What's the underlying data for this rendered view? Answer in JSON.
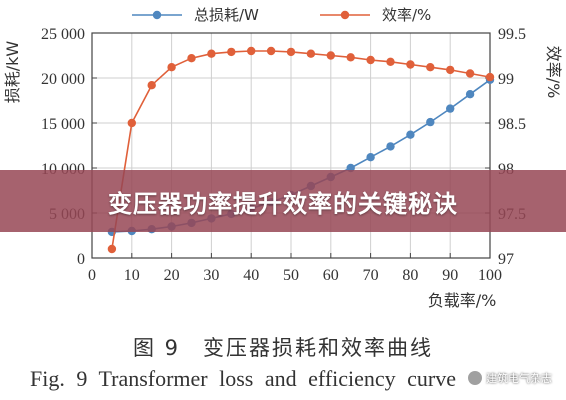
{
  "banner": {
    "title": "变压器功率提升效率的关键秘诀"
  },
  "caption": {
    "cn": "图 9　变压器损耗和效率曲线",
    "en": "Fig. 9   Transformer loss and efficiency curve"
  },
  "watermark": {
    "text": "建筑电气杂志",
    "icon": "wechat-icon"
  },
  "colors": {
    "loss": "#4f87bf",
    "efficiency": "#e0603a",
    "axis": "#444444",
    "grid": "#cfcfcf"
  },
  "chart_data": {
    "type": "line",
    "xlabel": "负载率/%",
    "ylabel_left": "损耗/kW",
    "ylabel_right": "效率/%",
    "x_ticks": [
      0,
      10,
      20,
      30,
      40,
      50,
      60,
      70,
      80,
      90,
      100
    ],
    "y_left_ticks": [
      "0",
      "5 000",
      "10 000",
      "15 000",
      "20 000",
      "25 000"
    ],
    "y_left_tick_values": [
      0,
      5000,
      10000,
      15000,
      20000,
      25000
    ],
    "y_right_ticks": [
      "97",
      "97.5",
      "98",
      "98.5",
      "99",
      "99.5"
    ],
    "y_right_tick_values": [
      97,
      97.5,
      98,
      98.5,
      99,
      99.5
    ],
    "xlim": [
      0,
      100
    ],
    "ylim_left": [
      0,
      25000
    ],
    "ylim_right": [
      97,
      99.5
    ],
    "legend_position": "top",
    "grid": true,
    "series": [
      {
        "name": "总损耗/W",
        "axis": "left",
        "x": [
          5,
          10,
          15,
          20,
          25,
          30,
          35,
          40,
          45,
          50,
          55,
          60,
          65,
          70,
          75,
          80,
          85,
          90,
          95,
          100
        ],
        "values": [
          2900,
          3000,
          3200,
          3500,
          3900,
          4400,
          4900,
          5500,
          6200,
          7000,
          8000,
          9000,
          10000,
          11200,
          12400,
          13700,
          15100,
          16600,
          18200,
          19800
        ]
      },
      {
        "name": "效率/%",
        "axis": "right",
        "x": [
          5,
          10,
          15,
          20,
          25,
          30,
          35,
          40,
          45,
          50,
          55,
          60,
          65,
          70,
          75,
          80,
          85,
          90,
          95,
          100
        ],
        "values": [
          97.1,
          98.5,
          98.92,
          99.12,
          99.22,
          99.27,
          99.29,
          99.3,
          99.3,
          99.29,
          99.27,
          99.25,
          99.23,
          99.2,
          99.18,
          99.15,
          99.12,
          99.09,
          99.05,
          99.01
        ]
      }
    ]
  }
}
